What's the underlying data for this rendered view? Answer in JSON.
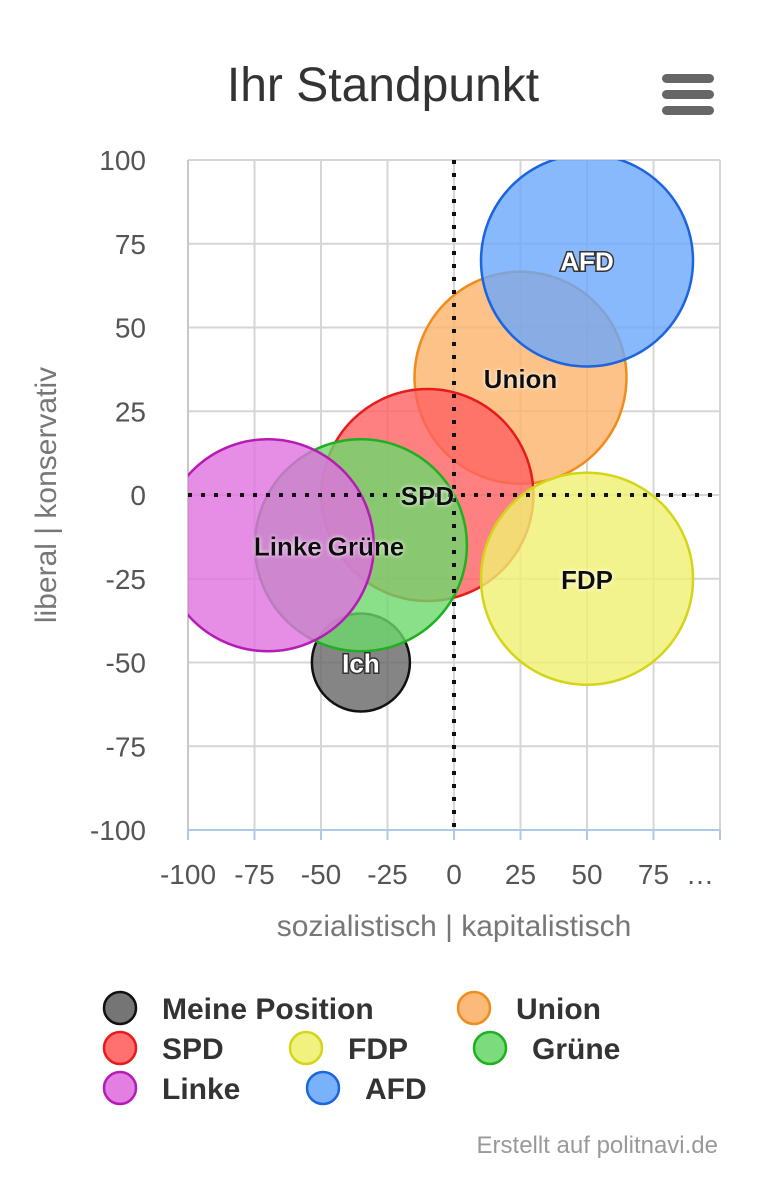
{
  "header": {
    "title": "Ihr Standpunkt",
    "menu_icon": "hamburger-menu-icon"
  },
  "footer": {
    "credit": "Erstellt auf politnavi.de"
  },
  "chart_data": {
    "type": "bubble",
    "title": "Ihr Standpunkt",
    "xlabel": "sozialistisch | kapitalistisch",
    "ylabel": "liberal | konservativ",
    "xlim": [
      -100,
      100
    ],
    "ylim": [
      -100,
      100
    ],
    "x_ticks": [
      "-100",
      "-75",
      "-50",
      "-25",
      "0",
      "25",
      "50",
      "75",
      "…"
    ],
    "y_ticks": [
      "100",
      "75",
      "50",
      "25",
      "0",
      "-25",
      "-50",
      "-75",
      "-100"
    ],
    "grid": true,
    "zero_lines": "dotted",
    "legend_position": "bottom",
    "series": [
      {
        "name": "Meine Position",
        "label": "Ich",
        "x": -35,
        "y": -50,
        "size": "small",
        "fill": "#666666",
        "stroke": "#111111"
      },
      {
        "name": "Union",
        "label": "Union",
        "x": 25,
        "y": 35,
        "size": "large",
        "fill": "#fbb36a",
        "stroke": "#f08c1c"
      },
      {
        "name": "SPD",
        "label": "SPD",
        "x": -10,
        "y": 0,
        "size": "large",
        "fill": "#ff6060",
        "stroke": "#e61c1c"
      },
      {
        "name": "FDP",
        "label": "FDP",
        "x": 50,
        "y": -25,
        "size": "large",
        "fill": "#f0f072",
        "stroke": "#d4d419"
      },
      {
        "name": "Grüne",
        "label": "Grüne",
        "x": -35,
        "y": -15,
        "size": "large",
        "fill": "#6bd86b",
        "stroke": "#1fb01f"
      },
      {
        "name": "Linke",
        "label": "Linke",
        "x": -70,
        "y": -15,
        "size": "large",
        "fill": "#e070e0",
        "stroke": "#b51cb5"
      },
      {
        "name": "AFD",
        "label": "AFD",
        "x": 50,
        "y": 70,
        "size": "large",
        "fill": "#6aa8fb",
        "stroke": "#1c64e0"
      }
    ]
  }
}
